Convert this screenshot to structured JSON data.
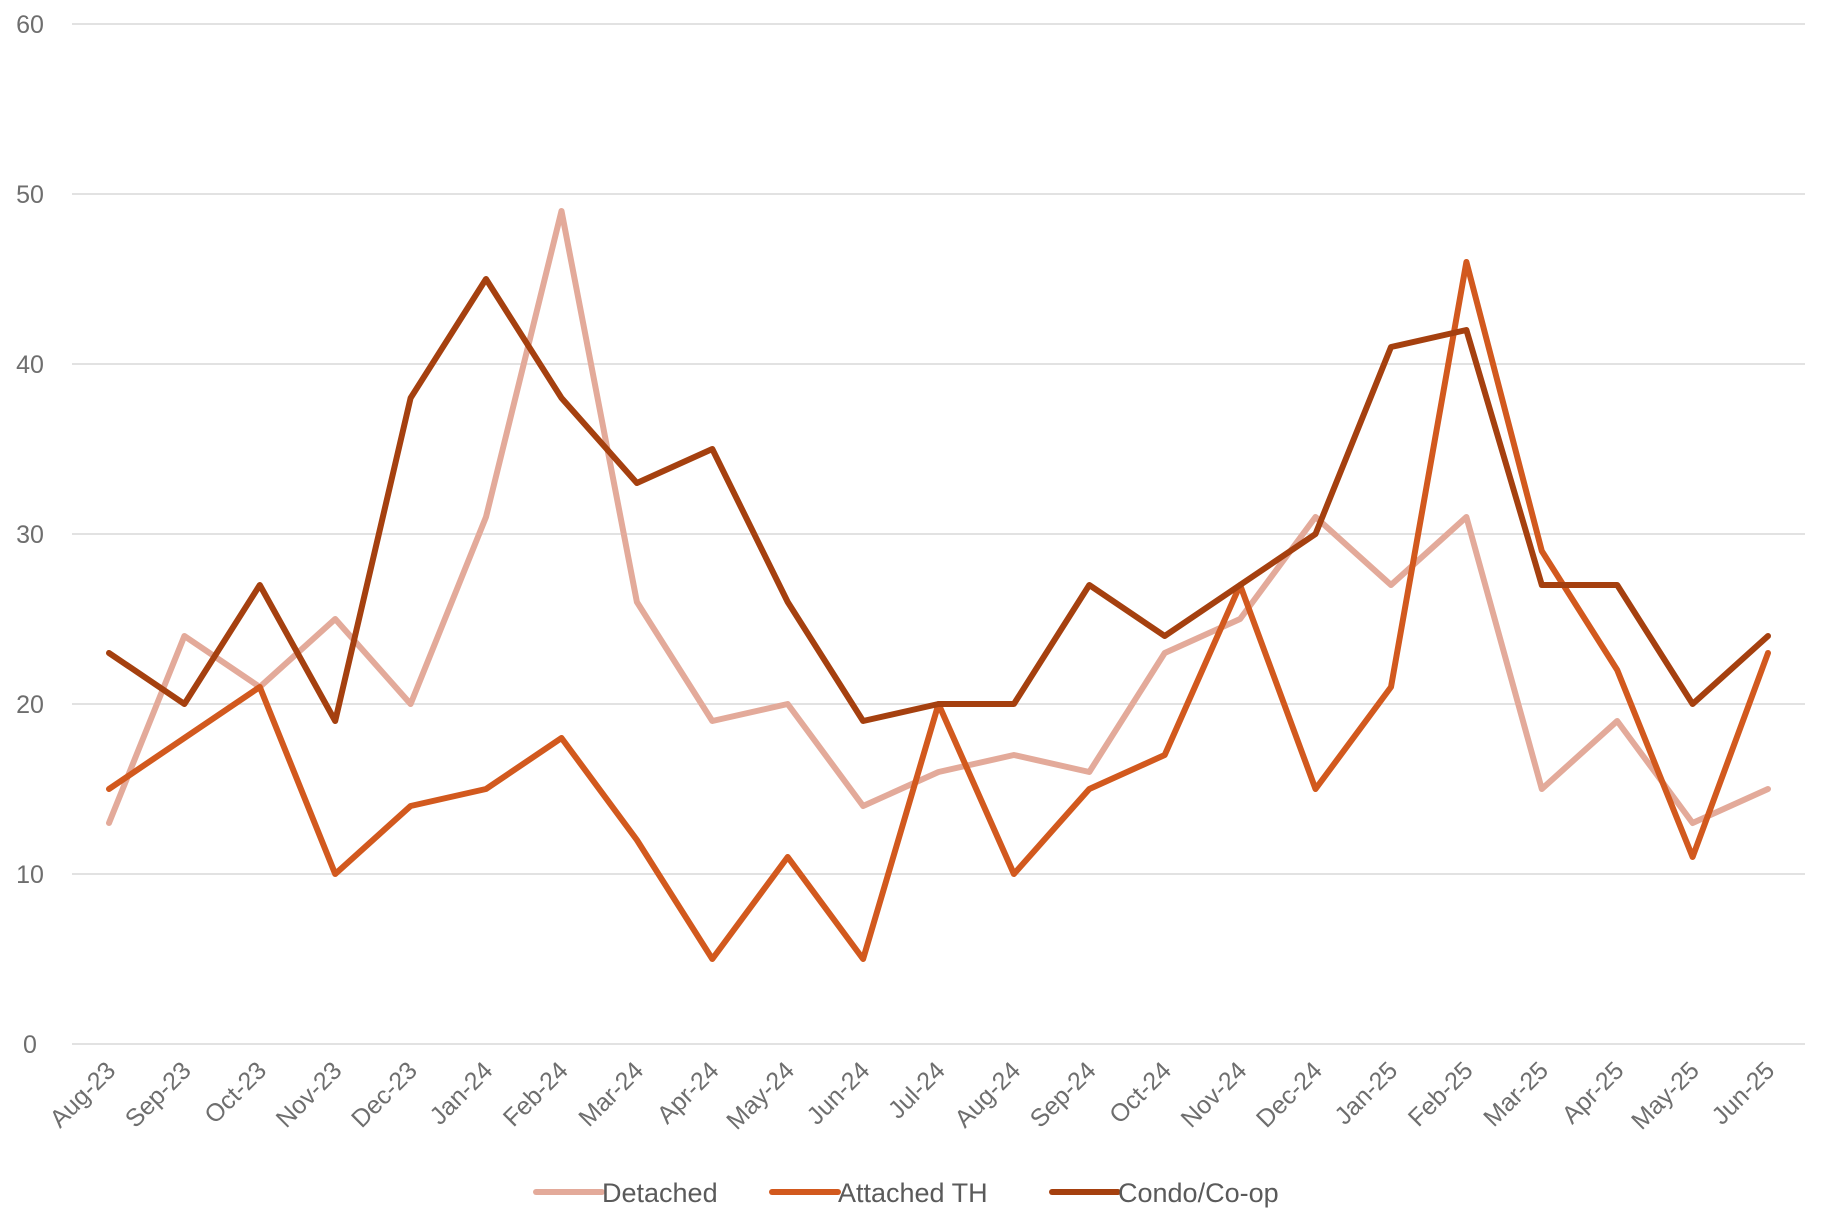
{
  "chart_data": {
    "type": "line",
    "title": "",
    "xlabel": "",
    "ylabel": "",
    "ylim": [
      0,
      60
    ],
    "yticks": [
      0,
      10,
      20,
      30,
      40,
      50,
      60
    ],
    "grid": true,
    "legend_position": "bottom",
    "categories": [
      "Aug-23",
      "Sep-23",
      "Oct-23",
      "Nov-23",
      "Dec-23",
      "Jan-24",
      "Feb-24",
      "Mar-24",
      "Apr-24",
      "May-24",
      "Jun-24",
      "Jul-24",
      "Aug-24",
      "Sep-24",
      "Oct-24",
      "Nov-24",
      "Dec-24",
      "Jan-25",
      "Feb-25",
      "Mar-25",
      "Apr-25",
      "May-25",
      "Jun-25"
    ],
    "series": [
      {
        "name": "Detached",
        "color": "#e3aa9a",
        "values": [
          13,
          24,
          21,
          25,
          20,
          31,
          49,
          26,
          19,
          20,
          14,
          16,
          17,
          16,
          23,
          25,
          31,
          27,
          31,
          15,
          19,
          13,
          15
        ]
      },
      {
        "name": "Attached TH",
        "color": "#d2591e",
        "values": [
          15,
          18,
          21,
          10,
          14,
          15,
          18,
          12,
          5,
          11,
          5,
          20,
          10,
          15,
          17,
          27,
          15,
          21,
          46,
          29,
          22,
          11,
          23
        ]
      },
      {
        "name": "Condo/Co-op",
        "color": "#a5400f",
        "values": [
          23,
          20,
          27,
          19,
          38,
          45,
          38,
          33,
          35,
          26,
          19,
          20,
          20,
          27,
          24,
          27,
          30,
          41,
          42,
          27,
          27,
          20,
          24
        ]
      }
    ]
  }
}
